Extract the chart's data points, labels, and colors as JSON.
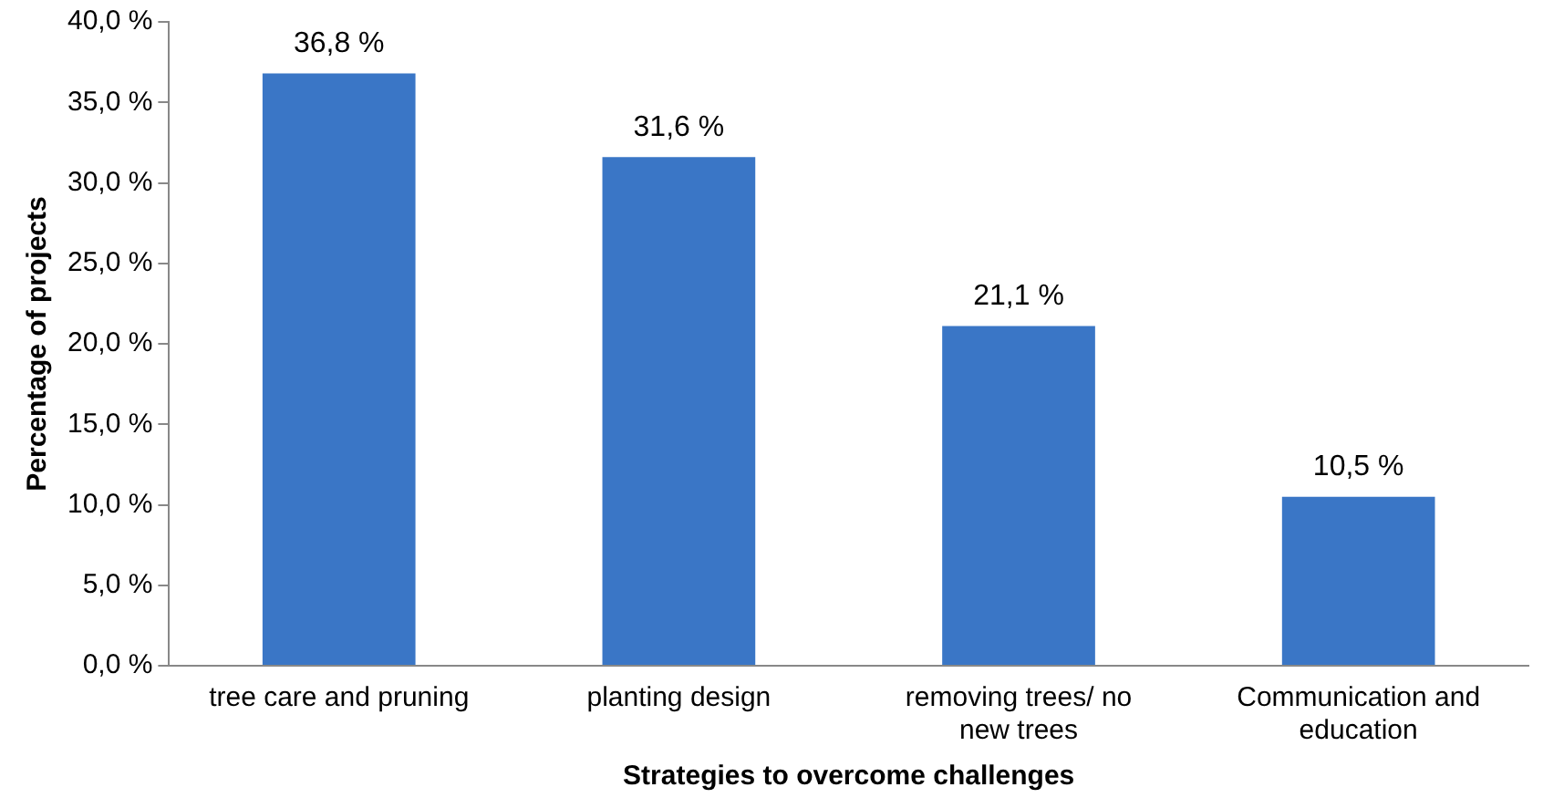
{
  "chart_data": {
    "type": "bar",
    "xlabel": "Strategies to overcome challenges",
    "ylabel": "Percentage of projects",
    "categories": [
      "tree care and pruning",
      "planting design",
      "removing trees/ no new trees",
      "Communication and education"
    ],
    "values": [
      36.8,
      31.6,
      21.1,
      10.5
    ],
    "color": "#3a76c6",
    "value_labels": [
      "36,8 %",
      "31,6 %",
      "21,1 %",
      "10,5 %"
    ],
    "ylim": [
      0,
      40
    ],
    "yticks": [
      {
        "value": 0,
        "label": "0,0 %"
      },
      {
        "value": 5,
        "label": "5,0 %"
      },
      {
        "value": 10,
        "label": "10,0 %"
      },
      {
        "value": 15,
        "label": "15,0 %"
      },
      {
        "value": 20,
        "label": "20,0 %"
      },
      {
        "value": 25,
        "label": "25,0 %"
      },
      {
        "value": 30,
        "label": "30,0 %"
      },
      {
        "value": 35,
        "label": "35,0 %"
      },
      {
        "value": 40,
        "label": "40,0 %"
      }
    ],
    "grid": false,
    "legend": false
  }
}
